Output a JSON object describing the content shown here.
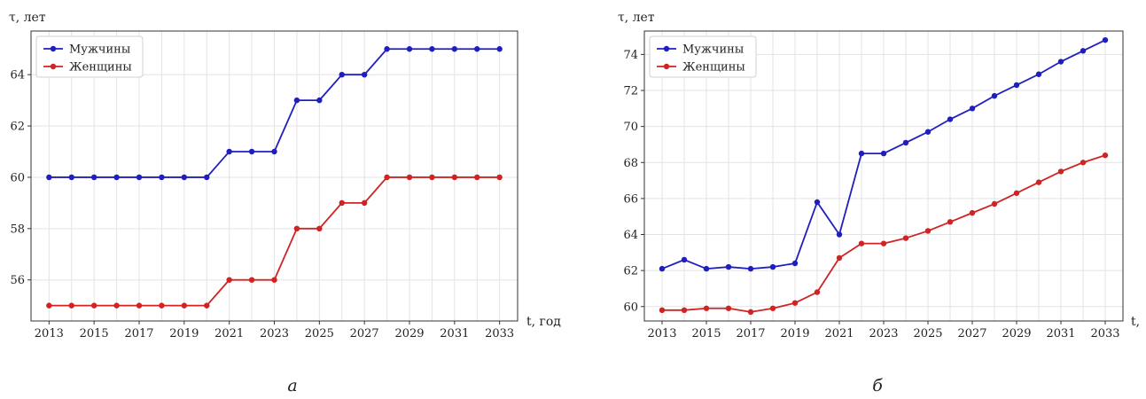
{
  "chart_data": [
    {
      "type": "line",
      "panel_label": "а",
      "ylabel": "τ, лет",
      "xlabel": "t, год",
      "xlim": [
        2012.2,
        2033.8
      ],
      "ylim": [
        54.4,
        65.7
      ],
      "xticks": [
        2013,
        2015,
        2017,
        2019,
        2021,
        2023,
        2025,
        2027,
        2029,
        2031,
        2033
      ],
      "yticks": [
        56,
        58,
        60,
        62,
        64
      ],
      "grid": true,
      "legend_position": "top-left",
      "x": [
        2013,
        2014,
        2015,
        2016,
        2017,
        2018,
        2019,
        2020,
        2021,
        2022,
        2023,
        2024,
        2025,
        2026,
        2027,
        2028,
        2029,
        2030,
        2031,
        2032,
        2033
      ],
      "series": [
        {
          "name": "Мужчины",
          "color": "#1f1fc0",
          "values": [
            60,
            60,
            60,
            60,
            60,
            60,
            60,
            60,
            61,
            61,
            61,
            63,
            63,
            64,
            64,
            65,
            65,
            65,
            65,
            65,
            65
          ]
        },
        {
          "name": "Женщины",
          "color": "#d02323",
          "values": [
            55,
            55,
            55,
            55,
            55,
            55,
            55,
            55,
            56,
            56,
            56,
            58,
            58,
            59,
            59,
            60,
            60,
            60,
            60,
            60,
            60
          ]
        }
      ]
    },
    {
      "type": "line",
      "panel_label": "б",
      "ylabel": "τ, лет",
      "xlabel": "t,",
      "xlim": [
        2012.2,
        2033.8
      ],
      "ylim": [
        59.2,
        75.3
      ],
      "xticks": [
        2013,
        2015,
        2017,
        2019,
        2021,
        2023,
        2025,
        2027,
        2029,
        2031,
        2033
      ],
      "yticks": [
        60,
        62,
        64,
        66,
        68,
        70,
        72,
        74
      ],
      "grid": true,
      "legend_position": "top-left",
      "x": [
        2013,
        2014,
        2015,
        2016,
        2017,
        2018,
        2019,
        2020,
        2021,
        2022,
        2023,
        2024,
        2025,
        2026,
        2027,
        2028,
        2029,
        2030,
        2031,
        2032,
        2033
      ],
      "series": [
        {
          "name": "Мужчины",
          "color": "#1f1fc0",
          "values": [
            62.1,
            62.6,
            62.1,
            62.2,
            62.1,
            62.2,
            62.4,
            65.8,
            64.0,
            68.5,
            68.5,
            69.1,
            69.7,
            70.4,
            71.0,
            71.7,
            72.3,
            72.9,
            73.6,
            74.2,
            74.8
          ]
        },
        {
          "name": "Женщины",
          "color": "#d02323",
          "values": [
            59.8,
            59.8,
            59.9,
            59.9,
            59.7,
            59.9,
            60.2,
            60.8,
            62.7,
            63.5,
            63.5,
            63.8,
            64.2,
            64.7,
            65.2,
            65.7,
            66.3,
            66.9,
            67.5,
            68.0,
            68.4
          ]
        }
      ]
    }
  ]
}
